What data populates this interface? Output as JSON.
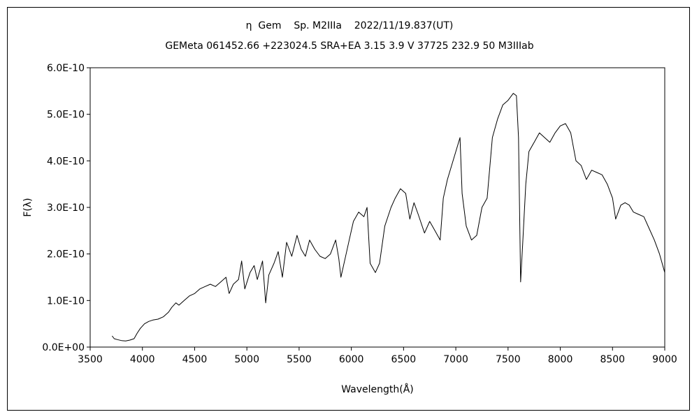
{
  "chart_data": {
    "type": "line",
    "title": "η  Gem    Sp. M2IIIa    2022/11/19.837(UT)",
    "subtitle": "GEMeta 061452.66 +223024.5 SRA+EA 3.15 3.9 V 37725 232.9 50 M3IIIab",
    "xlabel": "Wavelength(Å)",
    "ylabel": "F(λ)",
    "xlim": [
      3500,
      9000
    ],
    "ylim": [
      0,
      6e-10
    ],
    "grid": false,
    "legend": "none",
    "x_ticks": [
      3500,
      4000,
      4500,
      5000,
      5500,
      6000,
      6500,
      7000,
      7500,
      8000,
      8500,
      9000
    ],
    "x_tick_labels": [
      "3500",
      "4000",
      "4500",
      "5000",
      "5500",
      "6000",
      "6500",
      "7000",
      "7500",
      "8000",
      "8500",
      "9000"
    ],
    "y_ticks": [
      0,
      1e-10,
      2e-10,
      3e-10,
      4e-10,
      5e-10,
      6e-10
    ],
    "y_tick_labels": [
      "0.0E+00",
      "1.0E-10",
      "2.0E-10",
      "3.0E-10",
      "4.0E-10",
      "5.0E-10",
      "6.0E-10"
    ],
    "series": [
      {
        "color": "#000000",
        "points": [
          [
            3710,
            2.4e-11
          ],
          [
            3730,
            1.8e-11
          ],
          [
            3760,
            1.6e-11
          ],
          [
            3800,
            1.4e-11
          ],
          [
            3840,
            1.3e-11
          ],
          [
            3880,
            1.5e-11
          ],
          [
            3920,
            1.8e-11
          ],
          [
            3950,
            3e-11
          ],
          [
            3980,
            4e-11
          ],
          [
            4020,
            5e-11
          ],
          [
            4060,
            5.5e-11
          ],
          [
            4100,
            5.8e-11
          ],
          [
            4150,
            6e-11
          ],
          [
            4200,
            6.5e-11
          ],
          [
            4250,
            7.5e-11
          ],
          [
            4280,
            8.5e-11
          ],
          [
            4320,
            9.5e-11
          ],
          [
            4350,
            9e-11
          ],
          [
            4400,
            1e-10
          ],
          [
            4450,
            1.1e-10
          ],
          [
            4500,
            1.15e-10
          ],
          [
            4550,
            1.25e-10
          ],
          [
            4600,
            1.3e-10
          ],
          [
            4650,
            1.35e-10
          ],
          [
            4700,
            1.3e-10
          ],
          [
            4750,
            1.4e-10
          ],
          [
            4800,
            1.5e-10
          ],
          [
            4830,
            1.15e-10
          ],
          [
            4870,
            1.35e-10
          ],
          [
            4920,
            1.45e-10
          ],
          [
            4950,
            1.85e-10
          ],
          [
            4980,
            1.25e-10
          ],
          [
            5030,
            1.6e-10
          ],
          [
            5070,
            1.75e-10
          ],
          [
            5100,
            1.45e-10
          ],
          [
            5150,
            1.85e-10
          ],
          [
            5180,
            9.5e-11
          ],
          [
            5210,
            1.55e-10
          ],
          [
            5260,
            1.8e-10
          ],
          [
            5300,
            2.05e-10
          ],
          [
            5340,
            1.5e-10
          ],
          [
            5380,
            2.25e-10
          ],
          [
            5430,
            1.95e-10
          ],
          [
            5480,
            2.4e-10
          ],
          [
            5520,
            2.1e-10
          ],
          [
            5560,
            1.95e-10
          ],
          [
            5600,
            2.3e-10
          ],
          [
            5650,
            2.1e-10
          ],
          [
            5700,
            1.95e-10
          ],
          [
            5750,
            1.9e-10
          ],
          [
            5800,
            2e-10
          ],
          [
            5850,
            2.3e-10
          ],
          [
            5880,
            1.9e-10
          ],
          [
            5900,
            1.5e-10
          ],
          [
            5940,
            1.9e-10
          ],
          [
            5980,
            2.3e-10
          ],
          [
            6020,
            2.7e-10
          ],
          [
            6070,
            2.9e-10
          ],
          [
            6120,
            2.8e-10
          ],
          [
            6150,
            3e-10
          ],
          [
            6180,
            1.8e-10
          ],
          [
            6230,
            1.6e-10
          ],
          [
            6270,
            1.8e-10
          ],
          [
            6320,
            2.6e-10
          ],
          [
            6380,
            3e-10
          ],
          [
            6420,
            3.2e-10
          ],
          [
            6470,
            3.4e-10
          ],
          [
            6520,
            3.3e-10
          ],
          [
            6560,
            2.75e-10
          ],
          [
            6600,
            3.1e-10
          ],
          [
            6640,
            2.85e-10
          ],
          [
            6700,
            2.45e-10
          ],
          [
            6750,
            2.7e-10
          ],
          [
            6800,
            2.5e-10
          ],
          [
            6850,
            2.3e-10
          ],
          [
            6880,
            3.2e-10
          ],
          [
            6920,
            3.6e-10
          ],
          [
            6960,
            3.9e-10
          ],
          [
            7000,
            4.2e-10
          ],
          [
            7040,
            4.5e-10
          ],
          [
            7060,
            3.3e-10
          ],
          [
            7100,
            2.6e-10
          ],
          [
            7150,
            2.3e-10
          ],
          [
            7200,
            2.4e-10
          ],
          [
            7250,
            3e-10
          ],
          [
            7300,
            3.2e-10
          ],
          [
            7350,
            4.5e-10
          ],
          [
            7400,
            4.9e-10
          ],
          [
            7450,
            5.2e-10
          ],
          [
            7500,
            5.3e-10
          ],
          [
            7550,
            5.45e-10
          ],
          [
            7580,
            5.4e-10
          ],
          [
            7600,
            4.5e-10
          ],
          [
            7620,
            1.4e-10
          ],
          [
            7640,
            2.2e-10
          ],
          [
            7670,
            3.5e-10
          ],
          [
            7700,
            4.2e-10
          ],
          [
            7750,
            4.4e-10
          ],
          [
            7800,
            4.6e-10
          ],
          [
            7850,
            4.5e-10
          ],
          [
            7900,
            4.4e-10
          ],
          [
            7950,
            4.6e-10
          ],
          [
            8000,
            4.75e-10
          ],
          [
            8050,
            4.8e-10
          ],
          [
            8100,
            4.6e-10
          ],
          [
            8150,
            4e-10
          ],
          [
            8200,
            3.9e-10
          ],
          [
            8250,
            3.6e-10
          ],
          [
            8300,
            3.8e-10
          ],
          [
            8350,
            3.75e-10
          ],
          [
            8400,
            3.7e-10
          ],
          [
            8450,
            3.5e-10
          ],
          [
            8500,
            3.2e-10
          ],
          [
            8530,
            2.75e-10
          ],
          [
            8580,
            3.05e-10
          ],
          [
            8620,
            3.1e-10
          ],
          [
            8660,
            3.05e-10
          ],
          [
            8700,
            2.9e-10
          ],
          [
            8750,
            2.85e-10
          ],
          [
            8800,
            2.8e-10
          ],
          [
            8850,
            2.55e-10
          ],
          [
            8900,
            2.3e-10
          ],
          [
            8950,
            2e-10
          ],
          [
            9000,
            1.6e-10
          ]
        ]
      }
    ]
  }
}
